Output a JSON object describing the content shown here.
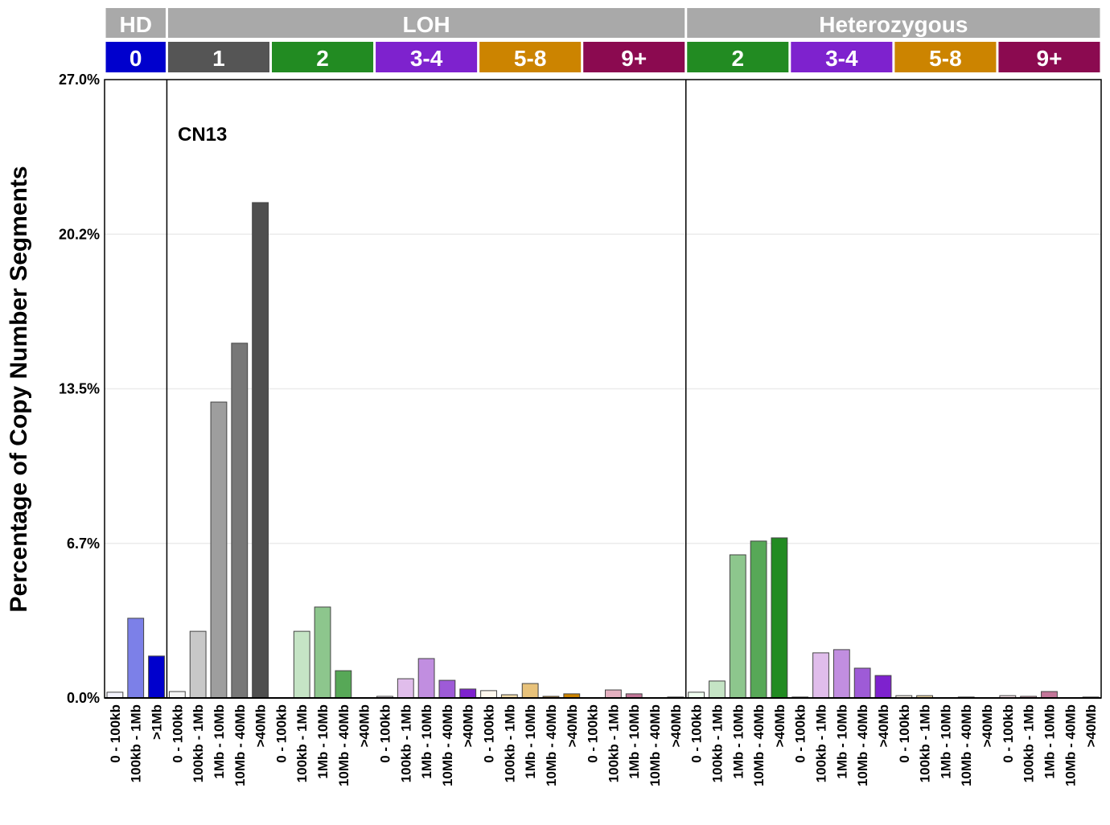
{
  "chart_data": {
    "type": "bar",
    "title": "",
    "annotation": "CN13",
    "ylabel": "Percentage of Copy Number Segments",
    "xlabel": "",
    "ylim": [
      0,
      27.0
    ],
    "yticks": [
      "0.0%",
      "6.7%",
      "13.5%",
      "20.2%",
      "27.0%"
    ],
    "yticks_values": [
      0,
      6.75,
      13.5,
      20.25,
      27.0
    ],
    "grid": "horizontal",
    "top_strips": [
      {
        "label": "HD",
        "span": [
          "0"
        ]
      },
      {
        "label": "LOH",
        "span": [
          "1",
          "2",
          "3-4",
          "5-8",
          "9+"
        ]
      },
      {
        "label": "Heterozygous",
        "span": [
          "2",
          "3-4",
          "5-8",
          "9+"
        ]
      }
    ],
    "groups": [
      {
        "section": "HD",
        "label": "0",
        "color": "#0000CD",
        "shades": [
          "#F4F4FF",
          "#7C80E8",
          "#0000CD"
        ],
        "categories": [
          "0 - 100kb",
          "100kb - 1Mb",
          ">1Mb"
        ],
        "values": [
          0.25,
          3.48,
          1.83
        ]
      },
      {
        "section": "LOH",
        "label": "1",
        "color": "#555555",
        "shades": [
          "#F4F4F4",
          "#C8C8C8",
          "#9E9E9E",
          "#777777",
          "#4F4F4F"
        ],
        "categories": [
          "0 - 100kb",
          "100kb - 1Mb",
          "1Mb - 10Mb",
          "10Mb - 40Mb",
          ">40Mb"
        ],
        "values": [
          0.28,
          2.91,
          12.92,
          15.49,
          21.63
        ]
      },
      {
        "section": "LOH",
        "label": "2",
        "color": "#228B22",
        "shades": [
          "#F0FFF0",
          "#C5E4C5",
          "#8DC68D",
          "#57A857",
          "#228B22"
        ],
        "categories": [
          "0 - 100kb",
          "100kb - 1Mb",
          "1Mb - 10Mb",
          "10Mb - 40Mb",
          ">40Mb"
        ],
        "values": [
          0,
          2.91,
          3.97,
          1.19,
          0
        ]
      },
      {
        "section": "LOH",
        "label": "3-4",
        "color": "#7E22CE",
        "shades": [
          "#F5EEFA",
          "#E0BDEB",
          "#C18EE0",
          "#9E5BD7",
          "#7E22CE"
        ],
        "categories": [
          "0 - 100kb",
          "100kb - 1Mb",
          "1Mb - 10Mb",
          "10Mb - 40Mb",
          ">40Mb"
        ],
        "values": [
          0.07,
          0.84,
          1.72,
          0.77,
          0.39
        ]
      },
      {
        "section": "LOH",
        "label": "5-8",
        "color": "#CC8400",
        "shades": [
          "#FFF8EE",
          "#F2DCAA",
          "#E8C27A",
          "#B58A3A",
          "#CC8400"
        ],
        "categories": [
          "0 - 100kb",
          "100kb - 1Mb",
          "1Mb - 10Mb",
          "10Mb - 40Mb",
          ">40Mb"
        ],
        "values": [
          0.32,
          0.14,
          0.63,
          0.07,
          0.18
        ]
      },
      {
        "section": "LOH",
        "label": "9+",
        "color": "#8B0A50",
        "shades": [
          "#FBE8EE",
          "#E4AFBF",
          "#C37699",
          "#A8426F",
          "#8B0A50"
        ],
        "categories": [
          "0 - 100kb",
          "100kb - 1Mb",
          "1Mb - 10Mb",
          "10Mb - 40Mb",
          ">40Mb"
        ],
        "values": [
          0,
          0.35,
          0.18,
          0,
          0.04
        ]
      },
      {
        "section": "Heterozygous",
        "label": "2",
        "color": "#228B22",
        "shades": [
          "#F0FFF0",
          "#C5E4C5",
          "#8DC68D",
          "#57A857",
          "#228B22"
        ],
        "categories": [
          "0 - 100kb",
          "100kb - 1Mb",
          "1Mb - 10Mb",
          "10Mb - 40Mb",
          ">40Mb"
        ],
        "values": [
          0.25,
          0.74,
          6.25,
          6.85,
          6.99
        ]
      },
      {
        "section": "Heterozygous",
        "label": "3-4",
        "color": "#7E22CE",
        "shades": [
          "#F5EEFA",
          "#E0BDEB",
          "#C18EE0",
          "#9E5BD7",
          "#7E22CE"
        ],
        "categories": [
          "0 - 100kb",
          "100kb - 1Mb",
          "1Mb - 10Mb",
          "10Mb - 40Mb",
          ">40Mb"
        ],
        "values": [
          0.04,
          1.97,
          2.11,
          1.3,
          0.98
        ]
      },
      {
        "section": "Heterozygous",
        "label": "5-8",
        "color": "#CC8400",
        "shades": [
          "#FFF8EE",
          "#F2DCAA",
          "#E8C27A",
          "#B58A3A",
          "#CC8400"
        ],
        "categories": [
          "0 - 100kb",
          "100kb - 1Mb",
          "1Mb - 10Mb",
          "10Mb - 40Mb",
          ">40Mb"
        ],
        "values": [
          0.1,
          0.1,
          0,
          0.04,
          0
        ]
      },
      {
        "section": "Heterozygous",
        "label": "9+",
        "color": "#8B0A50",
        "shades": [
          "#FBE8EE",
          "#E4AFBF",
          "#C37699",
          "#A8426F",
          "#8B0A50"
        ],
        "categories": [
          "0 - 100kb",
          "100kb - 1Mb",
          "1Mb - 10Mb",
          "10Mb - 40Mb",
          ">40Mb"
        ],
        "values": [
          0.1,
          0.07,
          0.28,
          0,
          0.04
        ]
      }
    ],
    "strip_color": "#A9A9A9"
  }
}
